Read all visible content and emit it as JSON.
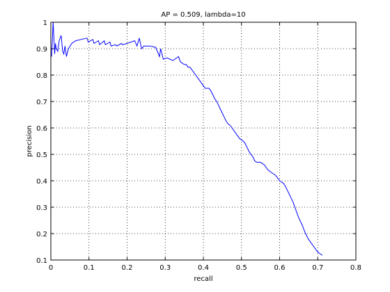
{
  "chart_data": {
    "type": "line",
    "title": "AP = 0.509, lambda=10",
    "xlabel": "recall",
    "ylabel": "precision",
    "xlim": [
      0,
      0.8
    ],
    "ylim": [
      0.1,
      1
    ],
    "xticks": [
      0,
      0.1,
      0.2,
      0.3,
      0.4,
      0.5,
      0.6,
      0.7,
      0.8
    ],
    "xtick_labels": [
      "0",
      "0.1",
      "0.2",
      "0.3",
      "0.4",
      "0.5",
      "0.6",
      "0.7",
      "0.8"
    ],
    "yticks": [
      0.1,
      0.2,
      0.3,
      0.4,
      0.5,
      0.6,
      0.7,
      0.8,
      0.9,
      1
    ],
    "ytick_labels": [
      "0.1",
      "0.2",
      "0.3",
      "0.4",
      "0.5",
      "0.6",
      "0.7",
      "0.8",
      "0.9",
      "1"
    ],
    "grid": true,
    "series": [
      {
        "color": "#0000ff",
        "x": [
          0.002,
          0.006,
          0.01,
          0.012,
          0.014,
          0.018,
          0.022,
          0.027,
          0.031,
          0.034,
          0.037,
          0.041,
          0.046,
          0.055,
          0.065,
          0.08,
          0.095,
          0.098,
          0.11,
          0.113,
          0.125,
          0.128,
          0.14,
          0.143,
          0.155,
          0.158,
          0.17,
          0.173,
          0.185,
          0.188,
          0.2,
          0.22,
          0.226,
          0.232,
          0.238,
          0.244,
          0.26,
          0.275,
          0.285,
          0.288,
          0.295,
          0.305,
          0.32,
          0.335,
          0.34,
          0.345,
          0.35,
          0.355,
          0.36,
          0.365,
          0.37,
          0.375,
          0.38,
          0.385,
          0.39,
          0.395,
          0.4,
          0.405,
          0.41,
          0.415,
          0.42,
          0.425,
          0.43,
          0.435,
          0.44,
          0.445,
          0.45,
          0.455,
          0.46,
          0.465,
          0.47,
          0.475,
          0.48,
          0.485,
          0.49,
          0.495,
          0.5,
          0.505,
          0.51,
          0.515,
          0.52,
          0.525,
          0.53,
          0.535,
          0.54,
          0.545,
          0.55,
          0.555,
          0.56,
          0.565,
          0.57,
          0.575,
          0.58,
          0.585,
          0.59,
          0.595,
          0.6,
          0.605,
          0.61,
          0.615,
          0.62,
          0.625,
          0.63,
          0.635,
          0.64,
          0.645,
          0.65,
          0.655,
          0.66,
          0.665,
          0.67,
          0.675,
          0.68,
          0.685,
          0.69,
          0.695,
          0.7,
          0.705,
          0.71,
          0.712
        ],
        "y": [
          0.87,
          1.0,
          0.88,
          0.92,
          0.9,
          0.89,
          0.93,
          0.95,
          0.89,
          0.88,
          0.91,
          0.87,
          0.9,
          0.92,
          0.93,
          0.935,
          0.94,
          0.925,
          0.935,
          0.92,
          0.93,
          0.915,
          0.93,
          0.915,
          0.925,
          0.91,
          0.915,
          0.91,
          0.92,
          0.915,
          0.92,
          0.93,
          0.91,
          0.94,
          0.9,
          0.91,
          0.91,
          0.905,
          0.87,
          0.9,
          0.86,
          0.865,
          0.855,
          0.87,
          0.85,
          0.845,
          0.84,
          0.84,
          0.83,
          0.83,
          0.82,
          0.81,
          0.8,
          0.79,
          0.78,
          0.77,
          0.76,
          0.75,
          0.75,
          0.75,
          0.74,
          0.725,
          0.71,
          0.7,
          0.685,
          0.67,
          0.655,
          0.64,
          0.625,
          0.615,
          0.61,
          0.6,
          0.59,
          0.58,
          0.57,
          0.56,
          0.555,
          0.55,
          0.54,
          0.525,
          0.51,
          0.5,
          0.49,
          0.475,
          0.47,
          0.47,
          0.47,
          0.465,
          0.46,
          0.45,
          0.44,
          0.435,
          0.43,
          0.425,
          0.42,
          0.41,
          0.4,
          0.395,
          0.39,
          0.38,
          0.365,
          0.35,
          0.335,
          0.32,
          0.3,
          0.28,
          0.26,
          0.245,
          0.23,
          0.21,
          0.195,
          0.18,
          0.17,
          0.16,
          0.15,
          0.14,
          0.13,
          0.125,
          0.12,
          0.118
        ]
      }
    ]
  }
}
